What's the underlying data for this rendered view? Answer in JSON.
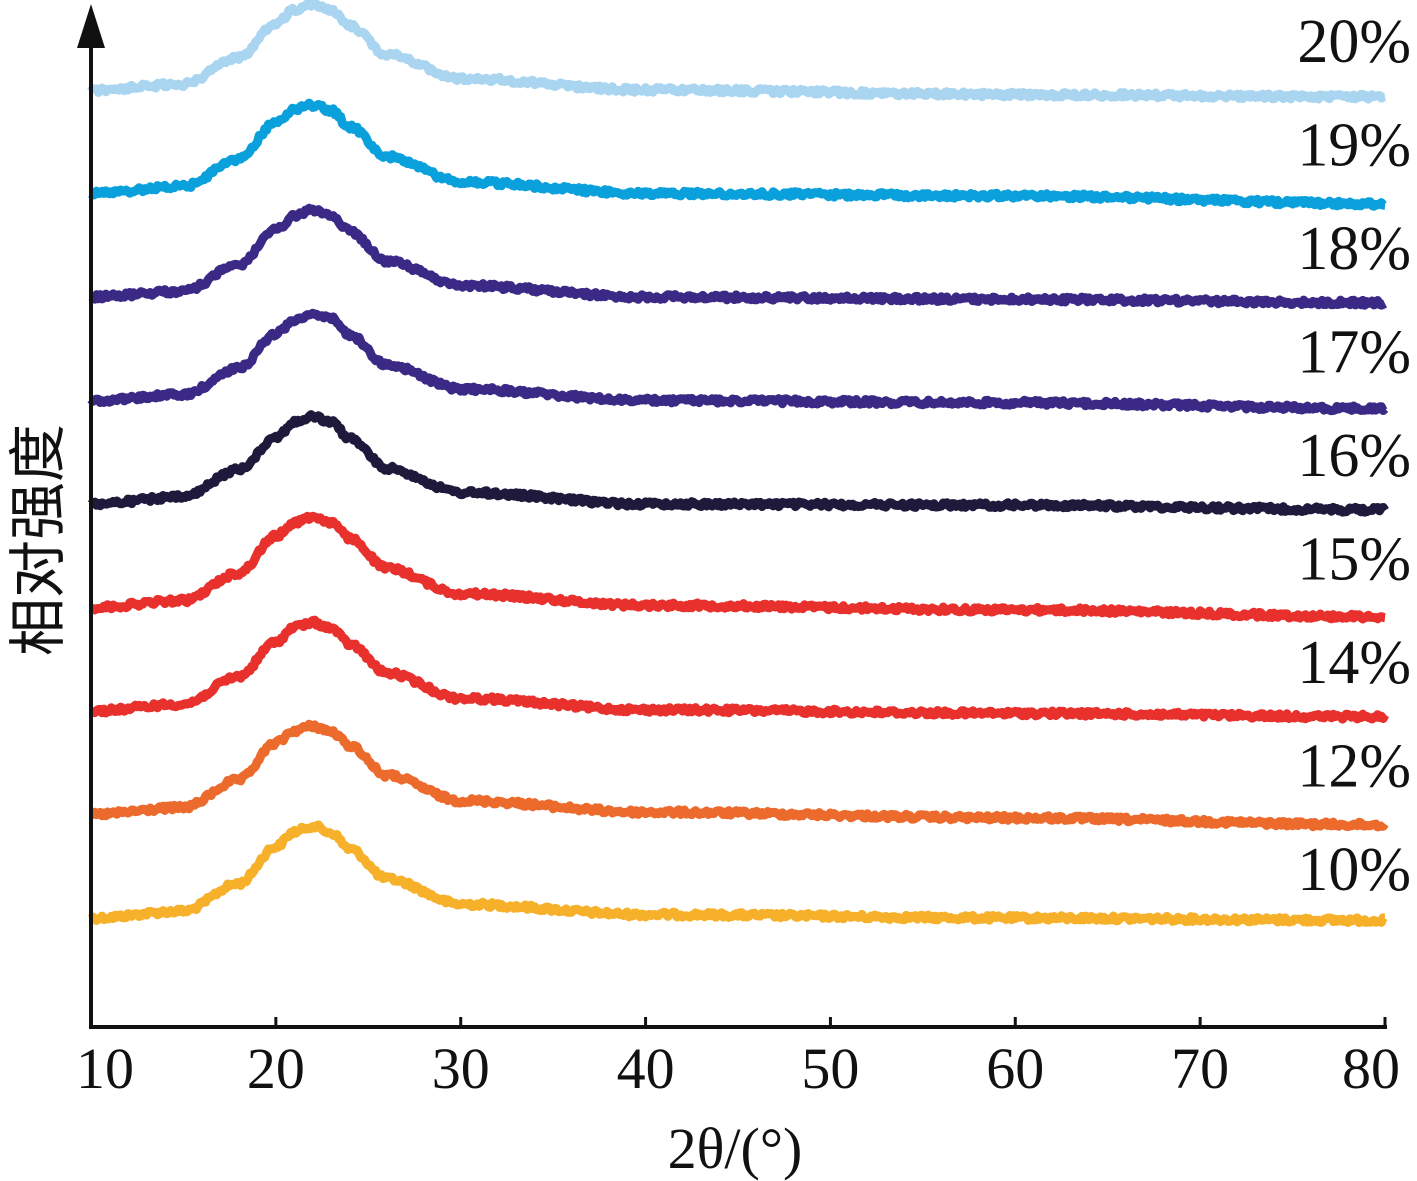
{
  "chart_data": {
    "type": "line",
    "xlabel": "2θ/(°)",
    "ylabel": "相对强度",
    "xlim": [
      10,
      80
    ],
    "xticks": [
      10,
      20,
      30,
      40,
      50,
      60,
      70,
      80
    ],
    "yticks": [],
    "grid": false,
    "legend": "series labels at right end of each curve",
    "stacked_offset": true,
    "peak_position": 22,
    "series": [
      {
        "name": "10%",
        "color": "#f6b02a",
        "x": [
          10,
          15,
          18,
          20,
          21,
          22,
          23,
          24,
          26,
          30,
          40,
          60,
          80
        ],
        "y": [
          0.0,
          0.06,
          0.3,
          0.62,
          0.75,
          0.8,
          0.74,
          0.6,
          0.34,
          0.12,
          0.03,
          0.0,
          -0.02
        ]
      },
      {
        "name": "12%",
        "color": "#ec6a2c",
        "x": [
          10,
          15,
          18,
          20,
          21,
          22,
          23,
          24,
          26,
          30,
          40,
          60,
          80
        ],
        "y": [
          0.0,
          0.06,
          0.3,
          0.62,
          0.73,
          0.77,
          0.72,
          0.6,
          0.34,
          0.12,
          0.02,
          -0.03,
          -0.09
        ]
      },
      {
        "name": "14%",
        "color": "#e8302c",
        "x": [
          10,
          15,
          18,
          20,
          21,
          22,
          23,
          24,
          26,
          30,
          40,
          60,
          80
        ],
        "y": [
          0.0,
          0.06,
          0.3,
          0.6,
          0.73,
          0.77,
          0.72,
          0.58,
          0.33,
          0.11,
          0.01,
          -0.02,
          -0.05
        ]
      },
      {
        "name": "15%",
        "color": "#e8302c",
        "x": [
          10,
          15,
          18,
          20,
          21,
          22,
          23,
          24,
          26,
          30,
          40,
          60,
          80
        ],
        "y": [
          0.0,
          0.06,
          0.3,
          0.62,
          0.74,
          0.79,
          0.74,
          0.6,
          0.34,
          0.12,
          0.02,
          -0.02,
          -0.08
        ]
      },
      {
        "name": "16%",
        "color": "#1f1a3c",
        "x": [
          10,
          15,
          18,
          20,
          21,
          22,
          23,
          24,
          26,
          30,
          40,
          60,
          80
        ],
        "y": [
          0.0,
          0.06,
          0.3,
          0.58,
          0.71,
          0.76,
          0.71,
          0.57,
          0.31,
          0.1,
          0.0,
          -0.01,
          -0.05
        ]
      },
      {
        "name": "17%",
        "color": "#3a2a86",
        "x": [
          10,
          15,
          18,
          20,
          21,
          22,
          23,
          24,
          26,
          30,
          40,
          60,
          80
        ],
        "y": [
          0.0,
          0.05,
          0.28,
          0.58,
          0.7,
          0.76,
          0.71,
          0.57,
          0.31,
          0.1,
          0.0,
          -0.02,
          -0.07
        ]
      },
      {
        "name": "18%",
        "color": "#3a2a86",
        "x": [
          10,
          15,
          18,
          20,
          21,
          22,
          23,
          24,
          26,
          30,
          40,
          60,
          80
        ],
        "y": [
          0.0,
          0.05,
          0.28,
          0.58,
          0.7,
          0.76,
          0.71,
          0.57,
          0.31,
          0.1,
          0.0,
          -0.02,
          -0.05
        ]
      },
      {
        "name": "19%",
        "color": "#0aa0dc",
        "x": [
          10,
          15,
          18,
          20,
          21,
          22,
          23,
          24,
          26,
          30,
          40,
          60,
          80
        ],
        "y": [
          0.0,
          0.06,
          0.3,
          0.62,
          0.73,
          0.77,
          0.72,
          0.58,
          0.32,
          0.1,
          0.0,
          -0.02,
          -0.09
        ]
      },
      {
        "name": "20%",
        "color": "#a9d5f0",
        "x": [
          10,
          15,
          18,
          20,
          21,
          22,
          23,
          24,
          26,
          30,
          40,
          60,
          80
        ],
        "y": [
          0.0,
          0.05,
          0.28,
          0.58,
          0.7,
          0.75,
          0.7,
          0.56,
          0.31,
          0.1,
          0.0,
          -0.04,
          -0.06
        ]
      }
    ]
  }
}
